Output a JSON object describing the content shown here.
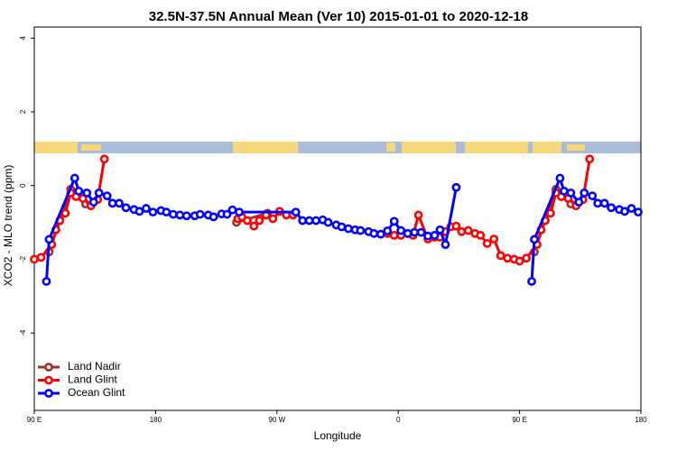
{
  "chart_data": {
    "type": "line",
    "title": "32.5N-37.5N Annual Mean (Ver 10)   2015-01-01 to 2020-12-18",
    "x_label": "Longitude",
    "y_label": "XCO2 - MLO trend (ppm)",
    "xlim": [
      90,
      540
    ],
    "ylim": [
      -6.1,
      4.3
    ],
    "xticks": [
      {
        "value": 90,
        "label": "90 E"
      },
      {
        "value": 180,
        "label": "180"
      },
      {
        "value": 270,
        "label": "90 W"
      },
      {
        "value": 360,
        "label": "0"
      },
      {
        "value": 450,
        "label": "90 E"
      },
      {
        "value": 540,
        "label": "180"
      }
    ],
    "yticks": [
      -4,
      -2,
      0,
      2,
      4
    ],
    "legend": "bottom-left",
    "series": [
      {
        "name": "Land Nadir",
        "color": "#a3302c",
        "x": [
          101,
          109,
          117,
          128,
          null,
          240,
          263,
          null,
          461,
          469,
          477,
          488
        ],
        "values": [
          -1.8,
          -0.95,
          -0.1,
          -0.5,
          null,
          -1.0,
          -0.75,
          null,
          -1.8,
          -0.95,
          -0.1,
          -0.5
        ]
      },
      {
        "name": "Land Glint",
        "color": "#ff0000",
        "x": [
          90,
          95,
          103,
          106,
          109,
          113,
          117,
          121,
          126,
          132,
          137,
          142,
          null,
          241,
          244,
          248,
          253,
          257,
          262,
          267,
          272,
          277,
          282,
          null,
          352,
          357,
          362,
          367,
          371,
          375,
          382,
          387,
          391,
          395,
          399,
          403,
          407,
          412,
          417,
          421,
          426,
          431,
          436,
          441,
          446,
          450,
          455,
          463,
          466,
          469,
          473,
          477,
          481,
          486,
          492,
          497,
          502
        ],
        "values": [
          -2.0,
          -1.95,
          -1.6,
          -1.2,
          -0.95,
          -0.75,
          -0.2,
          -0.3,
          -0.35,
          -0.55,
          -0.38,
          0.72,
          null,
          -0.9,
          -0.85,
          -0.95,
          -1.1,
          -0.95,
          -0.8,
          -0.9,
          -0.7,
          -0.8,
          -0.8,
          null,
          -1.3,
          -1.35,
          -1.35,
          -1.3,
          -1.35,
          -0.8,
          -1.45,
          -1.4,
          -1.4,
          -1.25,
          -1.12,
          -1.1,
          -1.25,
          -1.22,
          -1.3,
          -1.35,
          -1.57,
          -1.45,
          -1.9,
          -1.97,
          -2.0,
          -2.05,
          -1.97,
          -1.6,
          -1.2,
          -0.95,
          -0.75,
          -0.2,
          -0.3,
          -0.35,
          -0.55,
          -0.38,
          0.72
        ]
      },
      {
        "name": "Ocean Glint",
        "color": "#0000ff",
        "x": [
          99,
          101,
          120,
          123,
          129,
          134,
          138,
          144,
          148,
          153,
          158,
          164,
          168,
          173,
          178,
          184,
          188,
          193,
          198,
          203,
          209,
          213,
          219,
          223,
          229,
          233,
          237,
          242,
          284,
          289,
          294,
          299,
          304,
          308,
          314,
          318,
          323,
          328,
          332,
          338,
          342,
          347,
          352,
          357,
          362,
          367,
          372,
          377,
          382,
          387,
          391,
          395,
          403,
          null,
          459,
          461,
          480,
          483,
          488,
          494,
          498,
          504,
          508,
          513,
          518,
          524,
          528,
          533,
          538
        ],
        "values": [
          -2.6,
          -1.46,
          0.2,
          -0.15,
          -0.2,
          -0.45,
          -0.2,
          -0.28,
          -0.48,
          -0.48,
          -0.6,
          -0.65,
          -0.7,
          -0.62,
          -0.72,
          -0.68,
          -0.72,
          -0.78,
          -0.8,
          -0.82,
          -0.82,
          -0.78,
          -0.8,
          -0.85,
          -0.77,
          -0.78,
          -0.66,
          -0.72,
          -0.72,
          -0.95,
          -0.95,
          -0.95,
          -0.93,
          -1.0,
          -1.07,
          -1.12,
          -1.17,
          -1.2,
          -1.22,
          -1.25,
          -1.3,
          -1.32,
          -1.23,
          -0.97,
          -1.22,
          -1.3,
          -1.27,
          -1.27,
          -1.37,
          -1.35,
          -1.2,
          -1.6,
          -0.05,
          null,
          -2.6,
          -1.46,
          0.2,
          -0.15,
          -0.2,
          -0.45,
          -0.2,
          -0.28,
          -0.48,
          -0.48,
          -0.6,
          -0.65,
          -0.7,
          -0.62,
          -0.72
        ]
      }
    ]
  }
}
